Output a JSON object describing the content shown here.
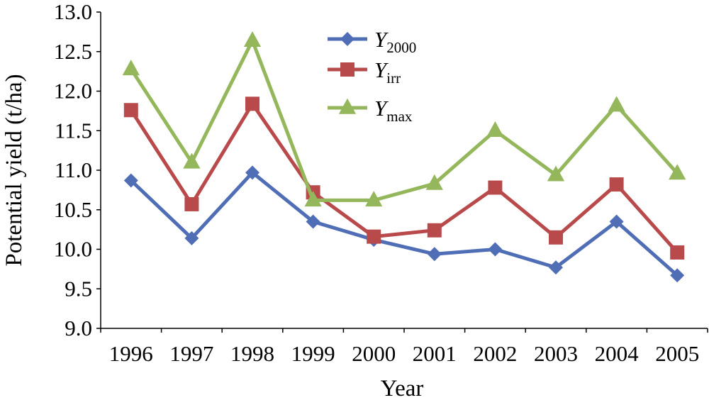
{
  "chart_data": {
    "type": "line",
    "categories": [
      "1996",
      "1997",
      "1998",
      "1999",
      "2000",
      "2001",
      "2002",
      "2003",
      "2004",
      "2005"
    ],
    "series": [
      {
        "name": "Y",
        "subscript": "2000",
        "color": "#4F6EB5",
        "marker": "diamond",
        "values": [
          10.87,
          10.14,
          10.97,
          10.35,
          10.12,
          9.94,
          10.0,
          9.77,
          10.35,
          9.67
        ]
      },
      {
        "name": "Y",
        "subscript": "irr",
        "color": "#B94A4C",
        "marker": "square",
        "values": [
          11.76,
          10.57,
          11.84,
          10.72,
          10.16,
          10.24,
          10.78,
          10.15,
          10.82,
          9.96
        ]
      },
      {
        "name": "Y",
        "subscript": "max",
        "color": "#93B75A",
        "marker": "triangle",
        "values": [
          12.28,
          11.1,
          12.64,
          10.62,
          10.62,
          10.83,
          11.5,
          10.94,
          11.82,
          10.96
        ]
      }
    ],
    "xlabel": "Year",
    "ylabel": "Potential yield (t/ha)",
    "ylim": [
      9.0,
      13.0
    ],
    "yticks": [
      "9.0",
      "9.5",
      "10.0",
      "10.5",
      "11.0",
      "11.5",
      "12.0",
      "12.5",
      "13.0"
    ],
    "grid": false,
    "legend_position": "top-center"
  }
}
